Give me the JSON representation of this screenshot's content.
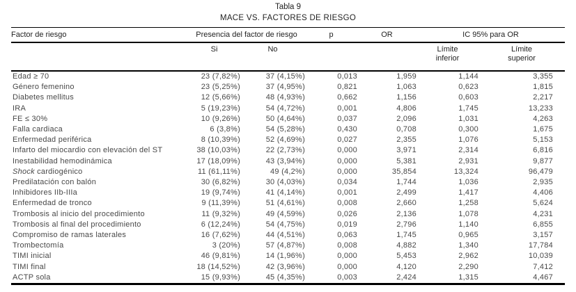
{
  "title": "Tabla 9",
  "subtitle": "MACE VS. FACTORES DE RIESGO",
  "colors": {
    "background": "#ffffff",
    "header_text": "#222222",
    "body_text": "#474747",
    "rule": "#000000"
  },
  "table": {
    "col_headers": {
      "factor": "Factor de riesgo",
      "presencia": "Presencia del factor de riesgo",
      "p": "p",
      "or": "OR",
      "ic": "IC 95% para OR",
      "si": "Si",
      "no": "No",
      "limite_inferior_line1": "Límite",
      "limite_inferior_line2": "inferior",
      "limite_superior_line1": "Límite",
      "limite_superior_line2": "superior"
    },
    "rows": [
      {
        "factor_parts": [
          {
            "t": "Edad ≥ 70"
          }
        ],
        "si": "23 (7,82%)",
        "no": "37 (4,15%)",
        "p": "0,013",
        "or": "1,959",
        "li": "1,144",
        "ls": "3,355"
      },
      {
        "factor_parts": [
          {
            "t": "Género femenino"
          }
        ],
        "si": "23 (5,25%)",
        "no": "37 (4,95%)",
        "p": "0,821",
        "or": "1,063",
        "li": "0,623",
        "ls": "1,815"
      },
      {
        "factor_parts": [
          {
            "t": "Diabetes mellitus"
          }
        ],
        "si": "12 (5,66%)",
        "no": "48 (4,93%)",
        "p": "0,662",
        "or": "1,156",
        "li": "0,603",
        "ls": "2,217"
      },
      {
        "factor_parts": [
          {
            "t": "IRA"
          }
        ],
        "si": "5 (19,23%)",
        "no": "54 (4,72%)",
        "p": "0,001",
        "or": "4,806",
        "li": "1,745",
        "ls": "13,233"
      },
      {
        "factor_parts": [
          {
            "t": "FE ≤ 30%"
          }
        ],
        "si": "10 (9,26%)",
        "no": "50 (4,64%)",
        "p": "0,037",
        "or": "2,096",
        "li": "1,031",
        "ls": "4,263"
      },
      {
        "factor_parts": [
          {
            "t": "Falla cardiaca"
          }
        ],
        "si": "6 (3,8%)",
        "no": "54 (5,28%)",
        "p": "0,430",
        "or": "0,708",
        "li": "0,300",
        "ls": "1,675"
      },
      {
        "factor_parts": [
          {
            "t": "Enfermedad periférica"
          }
        ],
        "si": "8 (10,39%)",
        "no": "52 (4,69%)",
        "p": "0,027",
        "or": "2,355",
        "li": "1,076",
        "ls": "5,153"
      },
      {
        "factor_parts": [
          {
            "t": "Infarto del miocardio con elevación del ST"
          }
        ],
        "si": "38 (10,03%)",
        "no": "22 (2,73%)",
        "p": "0,000",
        "or": "3,971",
        "li": "2,314",
        "ls": "6,816"
      },
      {
        "factor_parts": [
          {
            "t": "Inestabilidad hemodinámica"
          }
        ],
        "si": "17 (18,09%)",
        "no": "43 (3,94%)",
        "p": "0,000",
        "or": "5,381",
        "li": "2,931",
        "ls": "9,877"
      },
      {
        "factor_parts": [
          {
            "t": "Shock",
            "i": true
          },
          {
            "t": " cardiogénico"
          }
        ],
        "si": "11 (61,11%)",
        "no": "49 (4,2%)",
        "p": "0,000",
        "or": "35,854",
        "li": "13,324",
        "ls": "96,479"
      },
      {
        "factor_parts": [
          {
            "t": "Predilatación con balón"
          }
        ],
        "si": "30 (6,82%)",
        "no": "30 (4,03%)",
        "p": "0,034",
        "or": "1,744",
        "li": "1,036",
        "ls": "2,935"
      },
      {
        "factor_parts": [
          {
            "t": "Inhibidores IIb-IIIa"
          }
        ],
        "si": "19 (9,74%)",
        "no": "41 (4,14%)",
        "p": "0,001",
        "or": "2,499",
        "li": "1,417",
        "ls": "4,406"
      },
      {
        "factor_parts": [
          {
            "t": "Enfermedad de tronco"
          }
        ],
        "si": "9 (11,39%)",
        "no": "51 (4,61%)",
        "p": "0,008",
        "or": "2,660",
        "li": "1,258",
        "ls": "5,624"
      },
      {
        "factor_parts": [
          {
            "t": "Trombosis al inicio del procedimiento"
          }
        ],
        "si": "11 (9,32%)",
        "no": "49 (4,59%)",
        "p": "0,026",
        "or": "2,136",
        "li": "1,078",
        "ls": "4,231"
      },
      {
        "factor_parts": [
          {
            "t": "Trombosis al final del procedimiento"
          }
        ],
        "si": "6 (12,24%)",
        "no": "54 (4,75%)",
        "p": "0,019",
        "or": "2,796",
        "li": "1,140",
        "ls": "6,855"
      },
      {
        "factor_parts": [
          {
            "t": "Compromiso de ramas laterales"
          }
        ],
        "si": "16 (7,62%)",
        "no": "44 (4,51%)",
        "p": "0,063",
        "or": "1,745",
        "li": "0,965",
        "ls": "3,157"
      },
      {
        "factor_parts": [
          {
            "t": "Trombectomía"
          }
        ],
        "si": "3 (20%)",
        "no": "57 (4,87%)",
        "p": "0,008",
        "or": "4,882",
        "li": "1,340",
        "ls": "17,784"
      },
      {
        "factor_parts": [
          {
            "t": "TIMI inicial"
          }
        ],
        "si": "46 (9,81%)",
        "no": "14 (1,96%)",
        "p": "0,000",
        "or": "5,453",
        "li": "2,962",
        "ls": "10,039"
      },
      {
        "factor_parts": [
          {
            "t": "TIMI final"
          }
        ],
        "si": "18 (14,52%)",
        "no": "42 (3,96%)",
        "p": "0,000",
        "or": "4,120",
        "li": "2,290",
        "ls": "7,412"
      },
      {
        "factor_parts": [
          {
            "t": "ACTP sola"
          }
        ],
        "si": "15 (9,93%)",
        "no": "45 (4,35%)",
        "p": "0,003",
        "or": "2,424",
        "li": "1,315",
        "ls": "4,467"
      }
    ]
  }
}
